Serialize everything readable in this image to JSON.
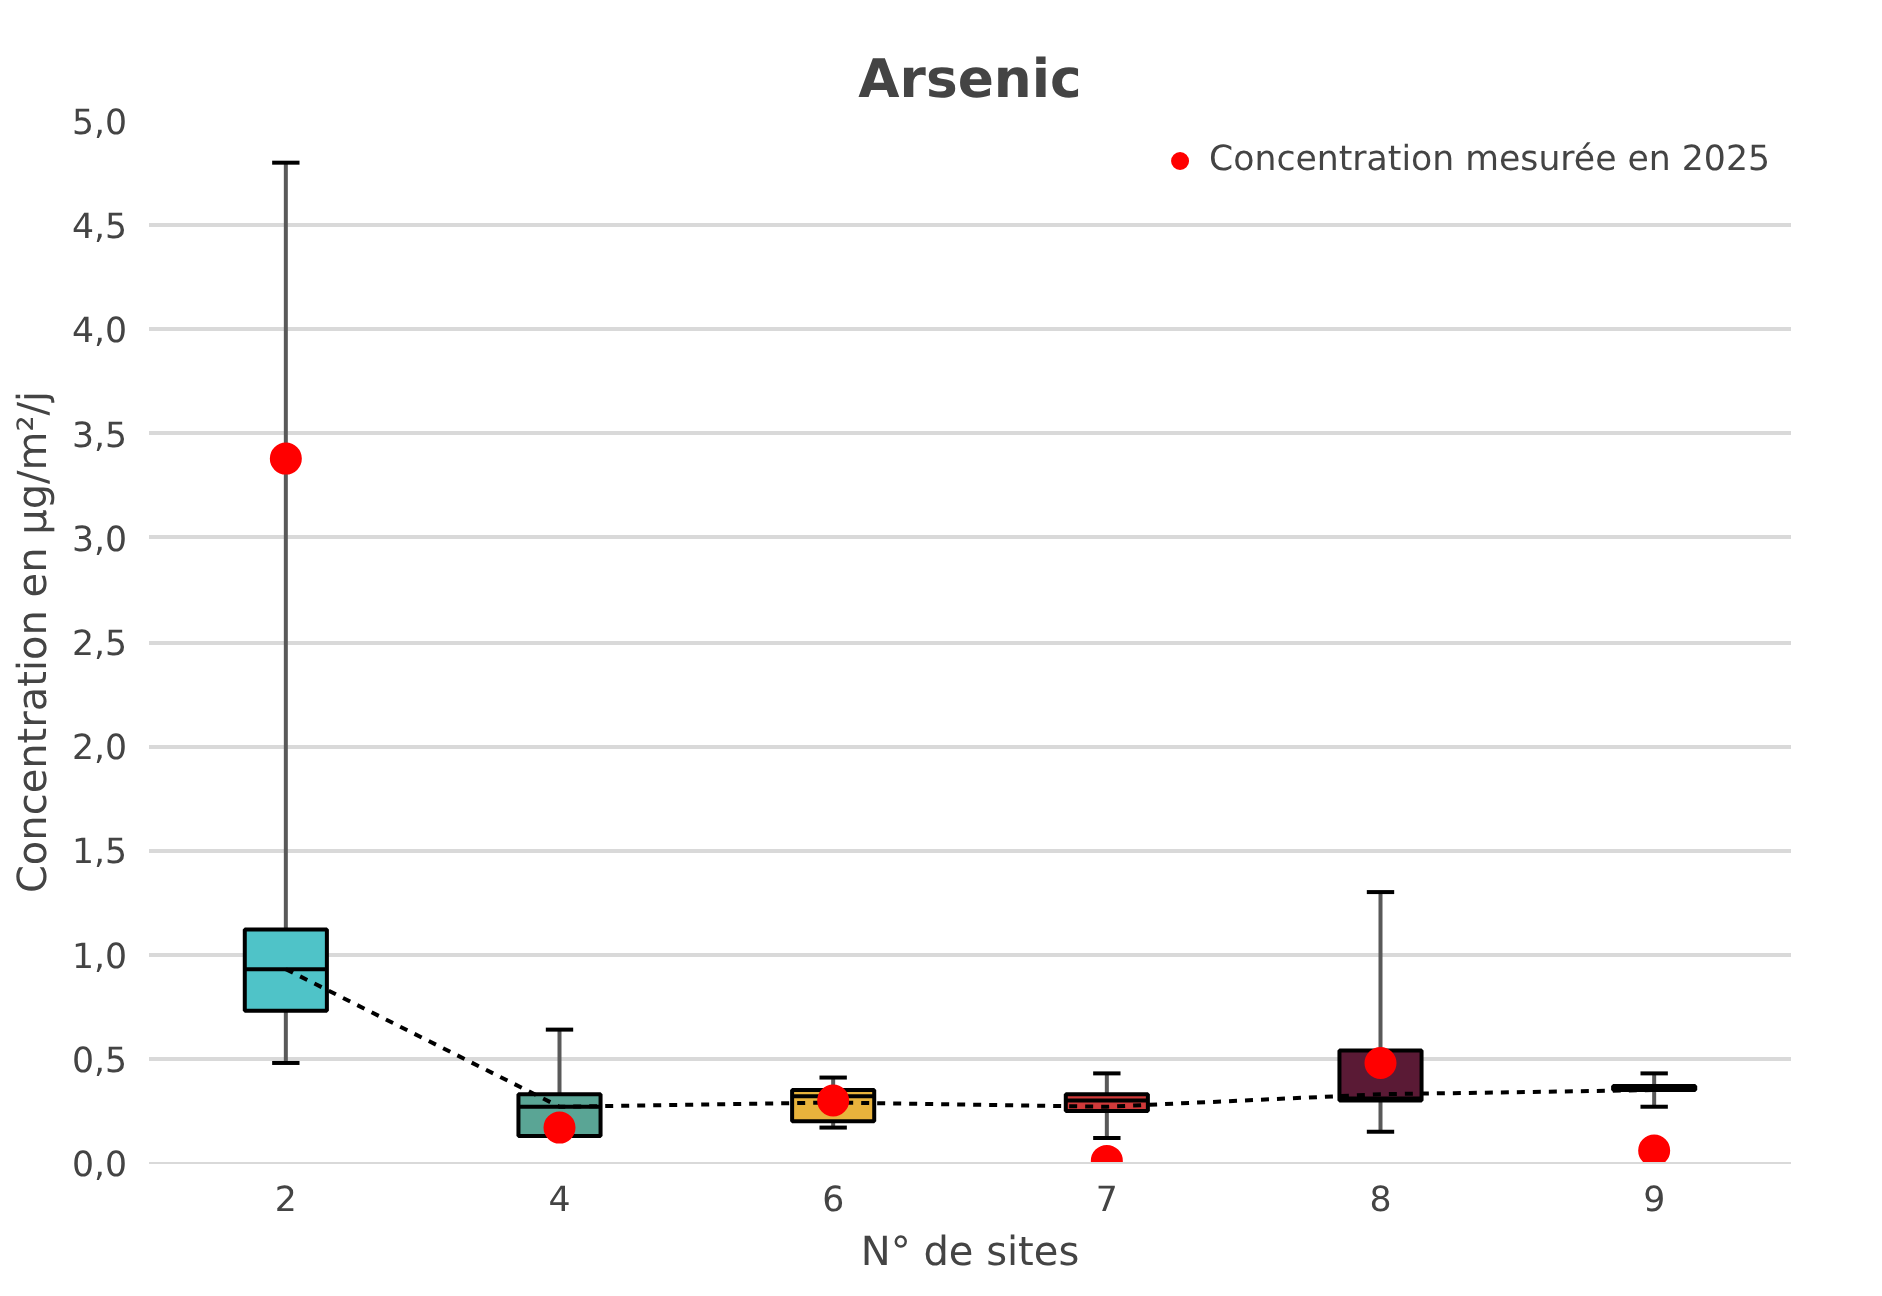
{
  "chart_data": {
    "type": "box",
    "title": "Arsenic",
    "xlabel": "N° de sites",
    "ylabel": "Concentration en µg/m²/j",
    "categories": [
      "2",
      "4",
      "6",
      "7",
      "8",
      "9"
    ],
    "colors": [
      "#4fc3c8",
      "#5aa595",
      "#e8b33c",
      "#d03a3a",
      "#5a1a35",
      "#111111"
    ],
    "boxes": [
      {
        "low": 0.48,
        "q1": 0.73,
        "median": 0.93,
        "q3": 1.12,
        "high": 4.8
      },
      {
        "low": 0.13,
        "q1": 0.13,
        "median": 0.27,
        "q3": 0.33,
        "high": 0.64
      },
      {
        "low": 0.17,
        "q1": 0.2,
        "median": 0.32,
        "q3": 0.35,
        "high": 0.41
      },
      {
        "low": 0.12,
        "q1": 0.25,
        "median": 0.3,
        "q3": 0.33,
        "high": 0.43
      },
      {
        "low": 0.15,
        "q1": 0.3,
        "median": 0.31,
        "q3": 0.54,
        "high": 1.3
      },
      {
        "low": 0.27,
        "q1": 0.35,
        "median": 0.36,
        "q3": 0.37,
        "high": 0.43
      }
    ],
    "series": [
      {
        "type": "line",
        "color": "#000000",
        "line_style": "dashed",
        "marker": "none",
        "x": [
          "2",
          "4",
          "6",
          "7",
          "8",
          "9"
        ],
        "values": [
          0.93,
          0.27,
          0.29,
          0.27,
          0.33,
          0.35
        ]
      },
      {
        "type": "scatter",
        "name": "Concentration mesurée en 2025",
        "color": "#ff0000",
        "marker": "circle",
        "x": [
          "2",
          "4",
          "6",
          "7",
          "8",
          "9"
        ],
        "values": [
          3.38,
          0.17,
          0.3,
          0.01,
          0.48,
          0.06
        ]
      }
    ],
    "ylim": [
      0,
      5
    ],
    "yticks": [
      {
        "value": 0,
        "label": "0,0"
      },
      {
        "value": 0.5,
        "label": "0,5"
      },
      {
        "value": 1,
        "label": "1,0"
      },
      {
        "value": 1.5,
        "label": "1,5"
      },
      {
        "value": 2,
        "label": "2,0"
      },
      {
        "value": 2.5,
        "label": "2,5"
      },
      {
        "value": 3,
        "label": "3,0"
      },
      {
        "value": 3.5,
        "label": "3,5"
      },
      {
        "value": 4,
        "label": "4,0"
      },
      {
        "value": 4.5,
        "label": "4,5"
      },
      {
        "value": 5,
        "label": "5,0"
      }
    ],
    "grid": "y",
    "legend": "top right"
  }
}
